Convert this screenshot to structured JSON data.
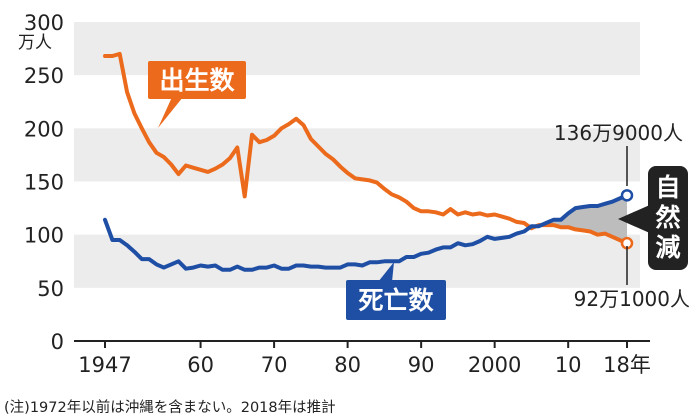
{
  "chart_data": {
    "type": "line",
    "unit_label": [
      "万人"
    ],
    "y_tick_labels": [
      "0",
      "50",
      "100",
      "150",
      "200",
      "250",
      "300"
    ],
    "x_tick_labels": [
      "1947",
      "60",
      "70",
      "80",
      "90",
      "2000",
      "10",
      "18年"
    ],
    "x_ticks": [
      1947,
      1960,
      1970,
      1980,
      1990,
      2000,
      2010,
      2018
    ],
    "xlim": [
      1947,
      2018
    ],
    "ylim": [
      0,
      300
    ],
    "grid": "alternating horizontal bands",
    "series": [
      {
        "name": "出生数",
        "color": "#ec6a1c",
        "x": [
          1947,
          1948,
          1949,
          1950,
          1951,
          1952,
          1953,
          1954,
          1955,
          1956,
          1957,
          1958,
          1959,
          1960,
          1961,
          1962,
          1963,
          1964,
          1965,
          1966,
          1967,
          1968,
          1969,
          1970,
          1971,
          1972,
          1973,
          1974,
          1975,
          1976,
          1977,
          1978,
          1979,
          1980,
          1981,
          1982,
          1983,
          1984,
          1985,
          1986,
          1987,
          1988,
          1989,
          1990,
          1991,
          1992,
          1993,
          1994,
          1995,
          1996,
          1997,
          1998,
          1999,
          2000,
          2001,
          2002,
          2003,
          2004,
          2005,
          2006,
          2007,
          2008,
          2009,
          2010,
          2011,
          2012,
          2013,
          2014,
          2015,
          2016,
          2017,
          2018
        ],
        "values": [
          268,
          268,
          270,
          234,
          214,
          200,
          187,
          177,
          173,
          166,
          157,
          165,
          163,
          161,
          159,
          162,
          166,
          172,
          182,
          136,
          194,
          187,
          189,
          193,
          200,
          204,
          209,
          203,
          190,
          183,
          176,
          171,
          164,
          158,
          153,
          152,
          151,
          149,
          143,
          138,
          135,
          131,
          125,
          122,
          122,
          121,
          119,
          124,
          119,
          121,
          119,
          120,
          118,
          119,
          117,
          115,
          112,
          111,
          106,
          109,
          109,
          109,
          107,
          107,
          105,
          104,
          103,
          100,
          101,
          98,
          95,
          92
        ]
      },
      {
        "name": "死亡数",
        "color": "#1f4fa5",
        "x": [
          1947,
          1948,
          1949,
          1950,
          1951,
          1952,
          1953,
          1954,
          1955,
          1956,
          1957,
          1958,
          1959,
          1960,
          1961,
          1962,
          1963,
          1964,
          1965,
          1966,
          1967,
          1968,
          1969,
          1970,
          1971,
          1972,
          1973,
          1974,
          1975,
          1976,
          1977,
          1978,
          1979,
          1980,
          1981,
          1982,
          1983,
          1984,
          1985,
          1986,
          1987,
          1988,
          1989,
          1990,
          1991,
          1992,
          1993,
          1994,
          1995,
          1996,
          1997,
          1998,
          1999,
          2000,
          2001,
          2002,
          2003,
          2004,
          2005,
          2006,
          2007,
          2008,
          2009,
          2010,
          2011,
          2012,
          2013,
          2014,
          2015,
          2016,
          2017,
          2018
        ],
        "values": [
          114,
          95,
          95,
          90,
          84,
          77,
          77,
          72,
          69,
          72,
          75,
          68,
          69,
          71,
          70,
          71,
          67,
          67,
          70,
          67,
          67,
          69,
          69,
          71,
          68,
          68,
          71,
          71,
          70,
          70,
          69,
          69,
          69,
          72,
          72,
          71,
          74,
          74,
          75,
          75,
          75,
          79,
          79,
          82,
          83,
          86,
          88,
          88,
          92,
          90,
          91,
          94,
          98,
          96,
          97,
          98,
          101,
          103,
          108,
          108,
          111,
          114,
          114,
          120,
          125,
          126,
          127,
          127,
          129,
          131,
          134,
          137
        ]
      }
    ],
    "annotations": {
      "deaths_2018": "136万9000人",
      "births_2018": "92万1000人",
      "natural_decrease": "自然減"
    },
    "footnote": "(注)1972年以前は沖縄を含まない。2018年は推計"
  }
}
